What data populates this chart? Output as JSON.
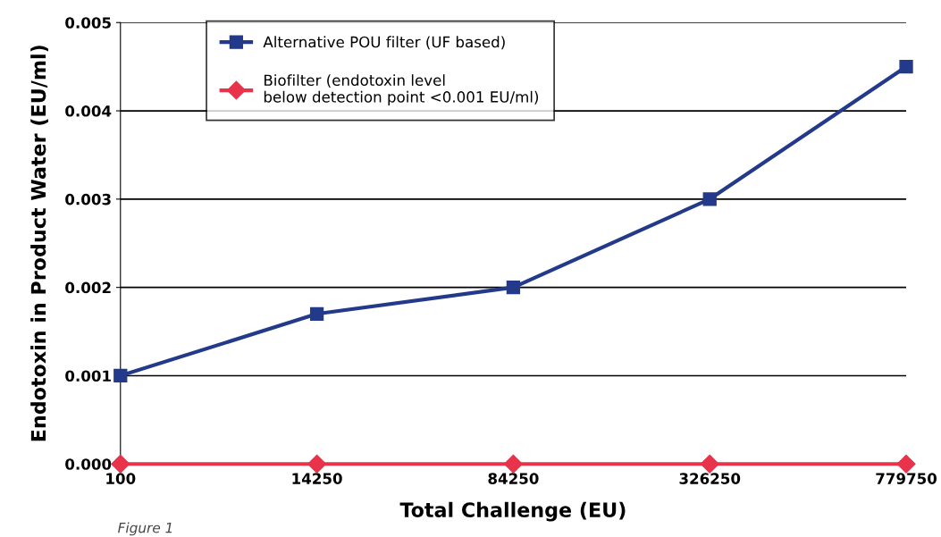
{
  "chart_data": {
    "type": "line",
    "xlabel": "Total Challenge (EU)",
    "ylabel": "Endotoxin in Product Water (EU/ml)",
    "categories": [
      "100",
      "14250",
      "84250",
      "326250",
      "779750"
    ],
    "series": [
      {
        "name": "Alternative POU filter (UF based)",
        "color": "#233a8a",
        "marker": "square",
        "values": [
          0.001,
          0.0017,
          0.002,
          0.003,
          0.0045
        ]
      },
      {
        "name": "Biofilter (endotoxin level\nbelow detection point <0.001 EU/ml)",
        "color": "#e8334a",
        "marker": "diamond",
        "values": [
          0,
          0,
          0,
          0,
          0
        ]
      }
    ],
    "ylim": [
      0,
      0.005
    ],
    "yticks": [
      {
        "value": 0,
        "label": "0.000"
      },
      {
        "value": 0.001,
        "label": "0.001"
      },
      {
        "value": 0.002,
        "label": "0.002"
      },
      {
        "value": 0.003,
        "label": "0.003"
      },
      {
        "value": 0.004,
        "label": "0.004"
      },
      {
        "value": 0.005,
        "label": "0.005"
      }
    ],
    "grid": "y",
    "legend": "top left",
    "line_style": "solid",
    "annotations": [
      "Figure 1"
    ]
  }
}
